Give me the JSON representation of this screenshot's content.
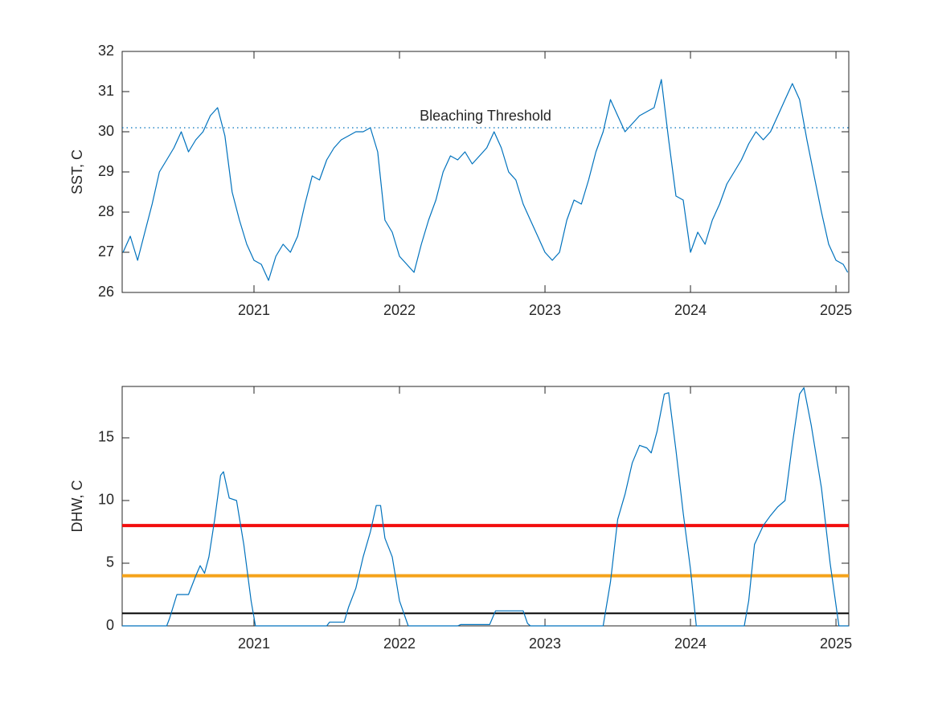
{
  "chart_data": [
    {
      "type": "line",
      "ylabel": "SST, C",
      "color": "#0072bd",
      "xlim": [
        2020.094,
        2025.088
      ],
      "xticks": [
        2021,
        2022,
        2023,
        2024,
        2025
      ],
      "ylim": [
        26,
        32
      ],
      "yticks": [
        26,
        27,
        28,
        29,
        30,
        31,
        32
      ],
      "threshold": {
        "value": 30.1,
        "label": "Bleaching Threshold",
        "color": "#0072bd"
      },
      "x": [
        2020.1,
        2020.15,
        2020.2,
        2020.25,
        2020.3,
        2020.35,
        2020.4,
        2020.45,
        2020.5,
        2020.55,
        2020.6,
        2020.65,
        2020.7,
        2020.75,
        2020.8,
        2020.85,
        2020.9,
        2020.95,
        2021.0,
        2021.05,
        2021.1,
        2021.15,
        2021.2,
        2021.25,
        2021.3,
        2021.35,
        2021.4,
        2021.45,
        2021.5,
        2021.55,
        2021.6,
        2021.65,
        2021.7,
        2021.75,
        2021.8,
        2021.85,
        2021.9,
        2021.95,
        2022.0,
        2022.05,
        2022.1,
        2022.15,
        2022.2,
        2022.25,
        2022.3,
        2022.35,
        2022.4,
        2022.45,
        2022.5,
        2022.55,
        2022.6,
        2022.65,
        2022.7,
        2022.75,
        2022.8,
        2022.85,
        2022.9,
        2022.95,
        2023.0,
        2023.05,
        2023.1,
        2023.15,
        2023.2,
        2023.25,
        2023.3,
        2023.35,
        2023.4,
        2023.45,
        2023.5,
        2023.55,
        2023.6,
        2023.65,
        2023.7,
        2023.75,
        2023.8,
        2023.85,
        2023.9,
        2023.95,
        2024.0,
        2024.05,
        2024.1,
        2024.15,
        2024.2,
        2024.25,
        2024.3,
        2024.35,
        2024.4,
        2024.45,
        2024.5,
        2024.55,
        2024.6,
        2024.65,
        2024.7,
        2024.75,
        2024.8,
        2024.85,
        2024.9,
        2024.95,
        2025.0,
        2025.05,
        2025.08
      ],
      "values": [
        27.0,
        27.4,
        26.8,
        27.5,
        28.2,
        29.0,
        29.3,
        29.6,
        30.0,
        29.5,
        29.8,
        30.0,
        30.4,
        30.6,
        29.9,
        28.5,
        27.8,
        27.2,
        26.8,
        26.7,
        26.3,
        26.9,
        27.2,
        27.0,
        27.4,
        28.2,
        28.9,
        28.8,
        29.3,
        29.6,
        29.8,
        29.9,
        30.0,
        30.0,
        30.1,
        29.5,
        27.8,
        27.5,
        26.9,
        26.7,
        26.5,
        27.2,
        27.8,
        28.3,
        29.0,
        29.4,
        29.3,
        29.5,
        29.2,
        29.4,
        29.6,
        30.0,
        29.6,
        29.0,
        28.8,
        28.2,
        27.8,
        27.4,
        27.0,
        26.8,
        27.0,
        27.8,
        28.3,
        28.2,
        28.8,
        29.5,
        30.0,
        30.8,
        30.4,
        30.0,
        30.2,
        30.4,
        30.5,
        30.6,
        31.3,
        29.8,
        28.4,
        28.3,
        27.0,
        27.5,
        27.2,
        27.8,
        28.2,
        28.7,
        29.0,
        29.3,
        29.7,
        30.0,
        29.8,
        30.0,
        30.4,
        30.8,
        31.2,
        30.8,
        29.8,
        28.9,
        28.0,
        27.2,
        26.8,
        26.7,
        26.5
      ]
    },
    {
      "type": "line",
      "ylabel": "DHW, C",
      "color": "#0072bd",
      "xlim": [
        2020.094,
        2025.088
      ],
      "xticks": [
        2021,
        2022,
        2023,
        2024,
        2025
      ],
      "ylim": [
        0,
        19.1
      ],
      "yticks": [
        0,
        5,
        10,
        15
      ],
      "hlines": [
        {
          "value": 1,
          "color": "#000000"
        },
        {
          "value": 4,
          "color": "#f5a31a"
        },
        {
          "value": 8,
          "color": "#f20d0d"
        }
      ],
      "x": [
        2020.094,
        2020.4,
        2020.42,
        2020.47,
        2020.55,
        2020.6,
        2020.63,
        2020.66,
        2020.69,
        2020.73,
        2020.77,
        2020.79,
        2020.83,
        2020.88,
        2020.93,
        2020.98,
        2021.01,
        2021.5,
        2021.52,
        2021.62,
        2021.65,
        2021.7,
        2021.75,
        2021.8,
        2021.84,
        2021.87,
        2021.9,
        2021.95,
        2022.0,
        2022.06,
        2022.4,
        2022.42,
        2022.62,
        2022.66,
        2022.85,
        2022.88,
        2022.9,
        2023.4,
        2023.45,
        2023.5,
        2023.55,
        2023.6,
        2023.65,
        2023.7,
        2023.73,
        2023.77,
        2023.82,
        2023.85,
        2023.9,
        2023.95,
        2024.0,
        2024.04,
        2024.37,
        2024.4,
        2024.44,
        2024.5,
        2024.55,
        2024.6,
        2024.65,
        2024.7,
        2024.75,
        2024.78,
        2024.83,
        2024.9,
        2024.96,
        2025.02,
        2025.088
      ],
      "values": [
        0,
        0,
        0.6,
        2.5,
        2.5,
        4.0,
        4.8,
        4.2,
        5.5,
        8.5,
        12.0,
        12.3,
        10.2,
        10.0,
        6.5,
        2.0,
        0,
        0,
        0.3,
        0.3,
        1.5,
        3.0,
        5.5,
        7.5,
        9.6,
        9.6,
        7.0,
        5.5,
        2.0,
        0,
        0,
        0.1,
        0.1,
        1.2,
        1.2,
        0.2,
        0,
        0,
        3.5,
        8.5,
        10.5,
        13.0,
        14.4,
        14.2,
        13.8,
        15.5,
        18.5,
        18.6,
        14.0,
        9.0,
        4.5,
        0,
        0,
        2.0,
        6.5,
        8.0,
        8.8,
        9.5,
        10.0,
        14.5,
        18.5,
        19.0,
        16.0,
        11.0,
        5.0,
        0,
        0
      ]
    }
  ]
}
